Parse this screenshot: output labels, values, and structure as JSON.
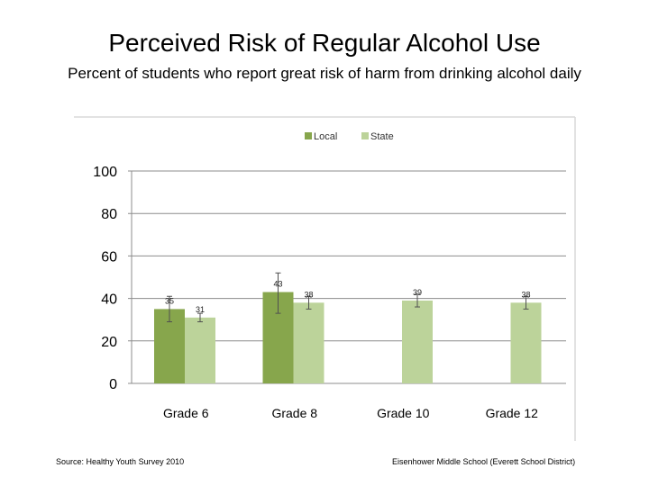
{
  "title": "Perceived Risk of Regular Alcohol Use",
  "subtitle": "Percent of students who report great risk of harm from drinking alcohol daily",
  "footer": {
    "source": "Source: Healthy Youth Survey 2010",
    "credit": "Eisenhower Middle School (Everett School District)"
  },
  "colors": {
    "local": "#87a64c",
    "state": "#bcd39a",
    "grid": "#8c8c8c",
    "frame": "#d9d9d9",
    "error": "#505050"
  },
  "chart_data": {
    "type": "bar",
    "categories": [
      "Grade 6",
      "Grade 8",
      "Grade 10",
      "Grade 12"
    ],
    "series": [
      {
        "name": "Local",
        "values": [
          35,
          43,
          null,
          null
        ],
        "labels": [
          "35",
          "43",
          "",
          ""
        ],
        "err_low": [
          29,
          33,
          null,
          null
        ],
        "err_high": [
          41,
          52,
          null,
          null
        ]
      },
      {
        "name": "State",
        "values": [
          31,
          38,
          39,
          38
        ],
        "labels": [
          "31",
          "38",
          "39",
          "38"
        ],
        "err_low": [
          29,
          35,
          36,
          35
        ],
        "err_high": [
          33,
          41,
          42,
          41
        ]
      }
    ],
    "yticks": [
      "0",
      "20",
      "40",
      "60",
      "80",
      "100"
    ],
    "ylim": [
      0,
      100
    ],
    "grid": true,
    "legend": "top-center",
    "xlabel": "",
    "ylabel": ""
  }
}
